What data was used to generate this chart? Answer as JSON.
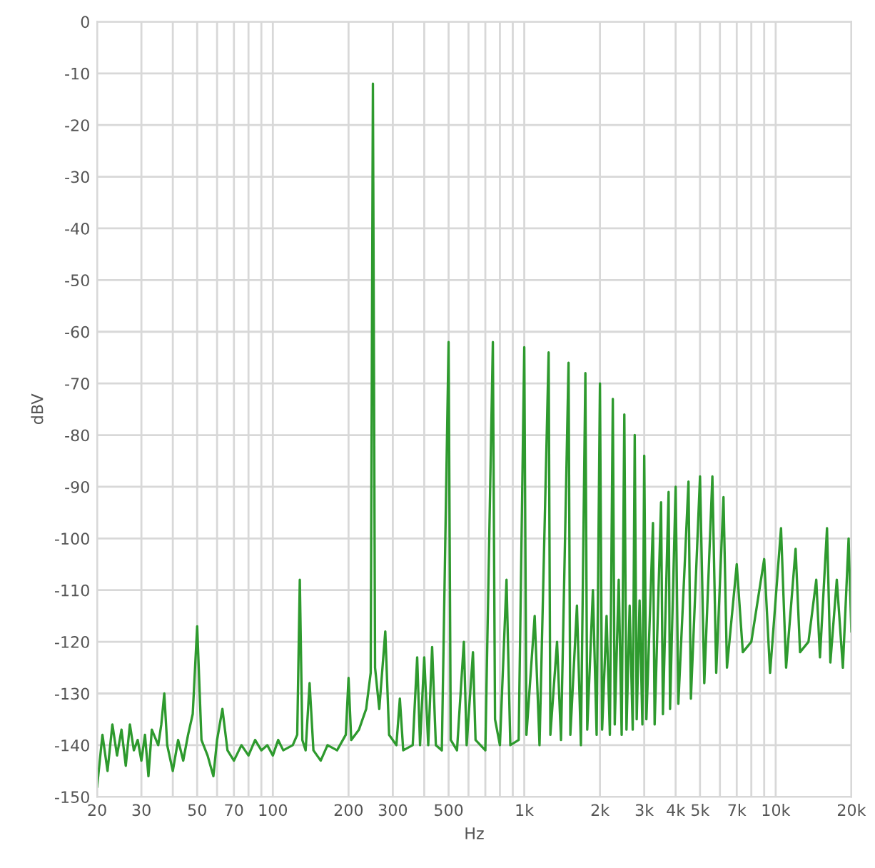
{
  "chart_data": {
    "type": "line",
    "xlabel": "Hz",
    "ylabel": "dBV",
    "log": "x",
    "grid": true,
    "marker": "none",
    "line_style": "solid",
    "xlim": [
      20,
      20000
    ],
    "ylim": [
      -150,
      0
    ],
    "xticks": [
      20,
      30,
      {
        "value": 40,
        "label": null
      },
      50,
      {
        "value": 60,
        "label": null
      },
      70,
      {
        "value": 80,
        "label": null
      },
      {
        "value": 90,
        "label": null
      },
      100,
      200,
      300,
      {
        "value": 400,
        "label": null
      },
      500,
      {
        "value": 600,
        "label": null
      },
      {
        "value": 700,
        "label": null
      },
      {
        "value": 800,
        "label": null
      },
      {
        "value": 900,
        "label": null
      },
      {
        "value": 1000,
        "label": "1k"
      },
      {
        "value": 2000,
        "label": "2k"
      },
      {
        "value": 3000,
        "label": "3k"
      },
      {
        "value": 4000,
        "label": "4k"
      },
      {
        "value": 5000,
        "label": "5k"
      },
      {
        "value": 6000,
        "label": null
      },
      {
        "value": 7000,
        "label": "7k"
      },
      {
        "value": 8000,
        "label": null
      },
      {
        "value": 9000,
        "label": null
      },
      {
        "value": 10000,
        "label": "10k"
      },
      {
        "value": 20000,
        "label": "20k"
      }
    ],
    "yticks": [
      0,
      -10,
      -20,
      -30,
      -40,
      -50,
      -60,
      -70,
      -80,
      -90,
      -100,
      -110,
      -120,
      -130,
      -140,
      -150
    ],
    "x": [
      20,
      21,
      22,
      23,
      24,
      25,
      26,
      27,
      28,
      29,
      30,
      31,
      32,
      33,
      35,
      36,
      37,
      38,
      40,
      42,
      44,
      46,
      48,
      50,
      52,
      55,
      58,
      60,
      63,
      66,
      70,
      75,
      80,
      85,
      90,
      95,
      100,
      105,
      110,
      120,
      125,
      128,
      131,
      135,
      140,
      145,
      155,
      165,
      180,
      195,
      200,
      205,
      220,
      235,
      245,
      250,
      255,
      265,
      280,
      290,
      310,
      320,
      330,
      360,
      375,
      385,
      400,
      415,
      430,
      445,
      470,
      500,
      510,
      540,
      575,
      590,
      625,
      640,
      700,
      750,
      765,
      800,
      850,
      880,
      950,
      1000,
      1020,
      1100,
      1150,
      1250,
      1270,
      1350,
      1400,
      1500,
      1525,
      1620,
      1680,
      1750,
      1780,
      1875,
      1940,
      2000,
      2040,
      2125,
      2190,
      2250,
      2290,
      2375,
      2440,
      2500,
      2550,
      2625,
      2700,
      2750,
      2800,
      2875,
      2950,
      3000,
      3060,
      3250,
      3300,
      3500,
      3560,
      3750,
      3800,
      4000,
      4100,
      4500,
      4600,
      5000,
      5200,
      5600,
      5800,
      6200,
      6400,
      7000,
      7400,
      8000,
      9000,
      9500,
      10500,
      11000,
      12000,
      12500,
      13500,
      14500,
      15000,
      16000,
      16500,
      17500,
      18500,
      19500,
      20000
    ],
    "series": [
      {
        "color": "#2e9a2e",
        "values": [
          -148,
          -138,
          -145,
          -136,
          -142,
          -137,
          -144,
          -136,
          -141,
          -139,
          -143,
          -138,
          -146,
          -137,
          -140,
          -136,
          -130,
          -140,
          -145,
          -139,
          -143,
          -138,
          -134,
          -117,
          -139,
          -142,
          -146,
          -139,
          -133,
          -141,
          -143,
          -140,
          -142,
          -139,
          -141,
          -140,
          -142,
          -139,
          -141,
          -140,
          -138,
          -108,
          -139,
          -141,
          -128,
          -141,
          -143,
          -140,
          -141,
          -138,
          -127,
          -139,
          -137,
          -133,
          -126,
          -12,
          -125,
          -133,
          -118,
          -138,
          -140,
          -131,
          -141,
          -140,
          -123,
          -140,
          -123,
          -140,
          -121,
          -140,
          -141,
          -62,
          -139,
          -141,
          -120,
          -140,
          -122,
          -139,
          -141,
          -62,
          -135,
          -140,
          -108,
          -140,
          -139,
          -63,
          -138,
          -115,
          -140,
          -64,
          -138,
          -120,
          -139,
          -66,
          -138,
          -113,
          -140,
          -68,
          -137,
          -110,
          -138,
          -70,
          -137,
          -115,
          -138,
          -73,
          -136,
          -108,
          -138,
          -76,
          -137,
          -113,
          -137,
          -80,
          -135,
          -112,
          -136,
          -84,
          -135,
          -97,
          -136,
          -93,
          -134,
          -91,
          -133,
          -90,
          -132,
          -89,
          -131,
          -88,
          -128,
          -88,
          -126,
          -92,
          -125,
          -105,
          -122,
          -120,
          -104,
          -126,
          -98,
          -125,
          -102,
          -122,
          -120,
          -108,
          -123,
          -98,
          -124,
          -108,
          -125,
          -100,
          -118
        ]
      }
    ]
  }
}
